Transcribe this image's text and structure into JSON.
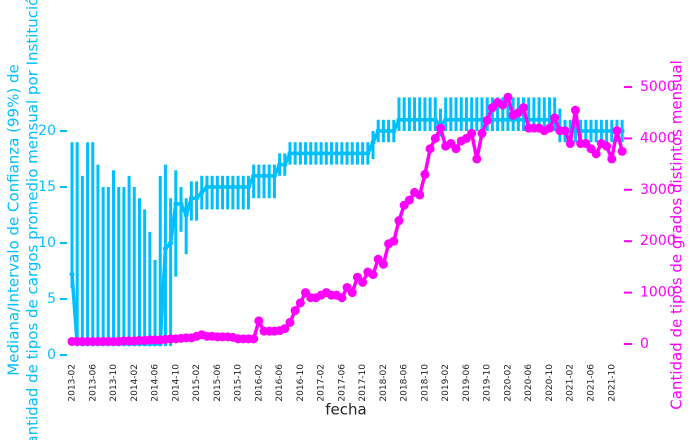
{
  "chart_data": {
    "type": "line",
    "x_label": "fecha",
    "y_label": [
      "Mediana/Intervalo de Confianza (99%) de",
      "cantidad de tipos de cargos promedio mensual por Institución"
    ],
    "y2_label": "Cantidad de tipos de grados distintos mensual",
    "categories": [
      "2013-02",
      null,
      null,
      null,
      "2013-06",
      null,
      null,
      null,
      "2013-10",
      null,
      null,
      null,
      "2014-02",
      null,
      null,
      null,
      "2014-06",
      null,
      null,
      null,
      "2014-10",
      null,
      null,
      null,
      "2015-02",
      null,
      null,
      null,
      "2015-06",
      null,
      null,
      null,
      "2015-10",
      null,
      null,
      null,
      "2016-02",
      null,
      null,
      null,
      "2016-06",
      null,
      null,
      null,
      "2016-10",
      null,
      null,
      null,
      "2017-02",
      null,
      null,
      null,
      "2017-06",
      null,
      null,
      null,
      "2017-10",
      null,
      null,
      null,
      "2018-02",
      null,
      null,
      null,
      "2018-06",
      null,
      null,
      null,
      "2018-10",
      null,
      null,
      null,
      "2019-02",
      null,
      null,
      null,
      "2019-06",
      null,
      null,
      null,
      "2019-10",
      null,
      null,
      null,
      "2020-02",
      null,
      null,
      null,
      "2020-06",
      null,
      null,
      null,
      "2020-10",
      null,
      null,
      null,
      "2021-02",
      null,
      null,
      null,
      "2021-06",
      null,
      null,
      null,
      "2021-10",
      null,
      null
    ],
    "ylim": [
      -0.3,
      24.5
    ],
    "yticks": [
      0,
      5,
      10,
      15,
      20
    ],
    "y2lim": [
      -280,
      5125
    ],
    "y2ticks": [
      0,
      1000,
      2000,
      3000,
      4000,
      5000
    ],
    "series": [
      {
        "color": "#00bfff",
        "values": [
          7.2,
          1,
          1,
          1,
          1,
          1,
          1,
          1,
          1,
          1,
          1,
          1,
          1,
          1,
          1,
          1,
          1,
          1,
          9.5,
          10,
          13.5,
          13.5,
          12.5,
          14,
          14,
          14.5,
          15,
          15,
          15,
          15,
          15,
          15,
          15,
          15,
          15,
          16,
          16,
          16,
          16,
          16,
          17,
          17,
          18,
          18,
          18,
          18,
          18,
          18,
          18,
          18,
          18,
          18,
          18,
          18,
          18,
          18,
          18,
          18,
          19,
          20,
          20,
          20,
          20,
          21,
          21,
          21,
          21,
          21,
          21,
          21,
          21,
          20.5,
          21,
          21,
          21,
          21,
          21,
          21,
          21,
          21,
          21,
          21,
          21,
          21,
          21,
          21,
          21,
          21,
          21,
          21,
          21,
          21,
          21,
          21,
          20,
          20,
          20,
          20,
          20,
          20,
          20,
          20,
          20,
          20,
          20,
          20,
          20
        ],
        "ci_low": [
          6,
          0.8,
          0.8,
          0.8,
          0.8,
          0.8,
          0.8,
          0.8,
          0.8,
          0.8,
          0.8,
          0.8,
          0.8,
          0.8,
          0.8,
          0.8,
          0.8,
          0.8,
          0.8,
          0.8,
          7,
          11,
          9,
          12,
          12,
          13,
          13,
          13,
          13,
          13,
          13,
          13,
          13,
          13,
          13,
          14,
          14,
          14,
          14,
          14,
          16,
          16,
          17,
          17,
          17,
          17,
          17,
          17,
          17,
          17,
          17,
          17,
          17,
          17,
          17,
          17,
          17,
          17,
          17.5,
          19,
          19,
          19,
          19,
          20,
          20,
          20,
          20,
          20,
          20,
          20,
          20,
          19.5,
          20,
          20,
          20,
          20,
          20,
          20,
          20,
          20,
          20,
          20,
          20,
          20,
          20,
          20,
          20,
          20,
          20,
          20,
          20,
          20,
          20,
          20,
          19,
          19,
          19,
          19,
          19,
          19,
          19,
          19,
          19,
          19,
          19,
          19,
          19
        ],
        "ci_high": [
          19,
          19,
          16,
          19,
          19,
          17,
          15,
          15,
          16.5,
          15,
          15,
          16,
          15,
          14,
          13,
          11,
          8.5,
          16,
          17,
          14,
          16.5,
          15,
          14,
          15.5,
          15.5,
          16,
          16,
          16,
          16,
          16,
          16,
          16,
          16,
          16,
          16,
          17,
          17,
          17,
          17,
          17,
          18,
          18,
          19,
          19,
          19,
          19,
          19,
          19,
          19,
          19,
          19,
          19,
          19,
          19,
          19,
          19,
          19,
          19,
          20,
          21,
          21,
          21,
          21,
          23,
          23,
          23,
          23,
          23,
          23,
          23,
          23,
          22,
          23,
          23,
          23,
          23,
          23,
          23,
          23,
          23,
          23,
          23,
          23,
          23,
          23,
          23,
          23,
          23,
          23,
          23,
          23,
          23,
          23,
          23,
          22,
          21,
          21,
          21,
          21,
          21,
          21,
          21,
          21,
          21,
          21,
          21,
          21
        ]
      },
      {
        "color": "#ff00ff",
        "axis": "y2",
        "values": [
          50,
          50,
          50,
          50,
          50,
          50,
          50,
          50,
          50,
          50,
          60,
          60,
          60,
          70,
          70,
          80,
          80,
          80,
          90,
          100,
          100,
          110,
          120,
          120,
          150,
          180,
          150,
          150,
          140,
          140,
          140,
          130,
          100,
          100,
          100,
          100,
          450,
          250,
          250,
          250,
          260,
          300,
          420,
          650,
          800,
          1000,
          900,
          900,
          950,
          1000,
          950,
          950,
          900,
          1100,
          1000,
          1300,
          1200,
          1400,
          1350,
          1650,
          1550,
          1950,
          2000,
          2400,
          2700,
          2800,
          2950,
          2900,
          3300,
          3800,
          4000,
          4200,
          3850,
          3900,
          3800,
          3950,
          4000,
          4100,
          3600,
          4100,
          4350,
          4600,
          4700,
          4650,
          4800,
          4450,
          4500,
          4600,
          4200,
          4200,
          4200,
          4150,
          4200,
          4400,
          4150,
          4150,
          3900,
          4550,
          3900,
          3900,
          3800,
          3700,
          3900,
          3850,
          3600,
          4150,
          3750
        ]
      }
    ]
  }
}
